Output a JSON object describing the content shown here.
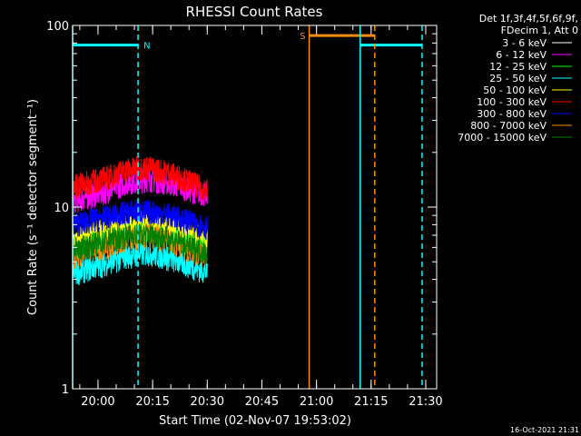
{
  "chart_data": {
    "type": "line",
    "title": "RHESSI Count Rates",
    "xlabel": "Start Time (02-Nov-07 19:53:02)",
    "ylabel": "Count Rate (s⁻¹ detector segment⁻¹)",
    "yscale": "log",
    "ylim": [
      1,
      100
    ],
    "xlim": [
      "19:53:02",
      "21:33:00"
    ],
    "y_ticks": [
      {
        "value": 1,
        "label": "1"
      },
      {
        "value": 10,
        "label": "10"
      },
      {
        "value": 100,
        "label": "100"
      }
    ],
    "x_ticks": [
      {
        "value": "20:00",
        "label": "20:00"
      },
      {
        "value": "20:15",
        "label": "20:15"
      },
      {
        "value": "20:30",
        "label": "20:30"
      },
      {
        "value": "20:45",
        "label": "20:45"
      },
      {
        "value": "21:00",
        "label": "21:00"
      },
      {
        "value": "21:15",
        "label": "21:15"
      },
      {
        "value": "21:30",
        "label": "21:30"
      }
    ],
    "grid": false,
    "legend_position": "right-outside",
    "legend_header": [
      "Det 1f,3f,4f,5f,6f,9f,",
      "FDecim 1, Att 0"
    ],
    "series": [
      {
        "name": "3 - 6 keV",
        "color": "#000000",
        "x": [
          "19:53",
          "20:02",
          "20:08",
          "20:14",
          "20:20",
          "20:26",
          "20:30"
        ],
        "y": [
          3.8,
          4.5,
          4.9,
          5.0,
          4.7,
          4.1,
          3.8
        ]
      },
      {
        "name": "6 - 12 keV",
        "color": "#ff00ff",
        "x": [
          "19:53",
          "20:02",
          "20:08",
          "20:14",
          "20:20",
          "20:26",
          "20:30"
        ],
        "y": [
          10.8,
          12.2,
          13.8,
          14.3,
          13.6,
          12.4,
          11.7
        ]
      },
      {
        "name": "12 - 25 keV",
        "color": "#00ff00",
        "x": [
          "19:53",
          "20:02",
          "20:08",
          "20:14",
          "20:20",
          "20:26",
          "20:30"
        ],
        "y": [
          6.1,
          6.9,
          7.4,
          7.6,
          7.1,
          6.4,
          5.9
        ]
      },
      {
        "name": "25 - 50 keV",
        "color": "#00ffff",
        "x": [
          "19:53",
          "20:02",
          "20:08",
          "20:14",
          "20:20",
          "20:26",
          "20:30"
        ],
        "y": [
          4.3,
          4.9,
          5.4,
          5.6,
          5.2,
          4.7,
          4.4
        ]
      },
      {
        "name": "50 - 100 keV",
        "color": "#ffff00",
        "x": [
          "19:53",
          "20:02",
          "20:08",
          "20:14",
          "20:20",
          "20:26",
          "20:30"
        ],
        "y": [
          6.8,
          7.5,
          8.1,
          8.2,
          7.8,
          7.1,
          6.7
        ]
      },
      {
        "name": "100 - 300 keV",
        "color": "#ff0000",
        "x": [
          "19:53",
          "20:02",
          "20:08",
          "20:14",
          "20:20",
          "20:26",
          "20:30"
        ],
        "y": [
          13.0,
          14.5,
          16.2,
          16.6,
          15.4,
          13.6,
          12.4
        ]
      },
      {
        "name": "300 - 800 keV",
        "color": "#0000ff",
        "x": [
          "19:53",
          "20:02",
          "20:08",
          "20:14",
          "20:20",
          "20:26",
          "20:30"
        ],
        "y": [
          8.0,
          8.8,
          9.4,
          9.5,
          9.0,
          8.2,
          7.8
        ]
      },
      {
        "name": "800 - 7000 keV",
        "color": "#ff8c00",
        "x": [
          "19:53",
          "20:02",
          "20:08",
          "20:14",
          "20:20",
          "20:26",
          "20:30"
        ],
        "y": [
          5.4,
          6.1,
          6.8,
          7.0,
          6.5,
          5.7,
          5.3
        ]
      },
      {
        "name": "7000 - 15000 keV",
        "color": "#008000",
        "x": [
          "19:53",
          "20:02",
          "20:08",
          "20:14",
          "20:20",
          "20:26",
          "20:30"
        ],
        "y": [
          5.8,
          6.5,
          7.0,
          7.1,
          6.7,
          6.0,
          5.6
        ]
      }
    ],
    "annotations": [
      {
        "type": "bar",
        "label": "N",
        "color": "#00ffff",
        "x_start": "19:53:02",
        "x_end": "20:11",
        "y": 78
      },
      {
        "type": "bar",
        "label": "S",
        "color": "#ff8c00",
        "x_start": "20:58",
        "x_end": "21:16",
        "y": 88
      },
      {
        "type": "bar",
        "label": "",
        "color": "#00ffff",
        "x_start": "21:12",
        "x_end": "21:29",
        "y": 78
      },
      {
        "type": "vline",
        "style": "solid",
        "color": "#00ffff",
        "x": "19:53:02"
      },
      {
        "type": "vline",
        "style": "dashed",
        "color": "#00ffff",
        "x": "20:11"
      },
      {
        "type": "vline",
        "style": "solid",
        "color": "#ff8c00",
        "x": "20:58"
      },
      {
        "type": "vline",
        "style": "solid",
        "color": "#00ffff",
        "x": "21:12"
      },
      {
        "type": "vline",
        "style": "dashed",
        "color": "#ff8c00",
        "x": "21:16"
      },
      {
        "type": "vline",
        "style": "dashed",
        "color": "#00ffff",
        "x": "21:29"
      }
    ]
  },
  "timestamp": "16-Oct-2021 21:31"
}
